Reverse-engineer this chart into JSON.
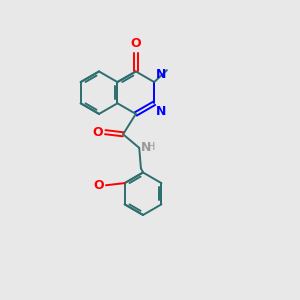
{
  "bg_color": "#e8e8e8",
  "bond_color": "#2d6e6e",
  "n_color": "#0000ff",
  "o_color": "#ff0000",
  "text_color": "#2d6e6e",
  "lw": 1.4,
  "doff": 0.055,
  "r_h": 0.5,
  "xlim": [
    0,
    6
  ],
  "ylim": [
    0,
    7
  ],
  "bcx": 1.8,
  "bcy": 4.85,
  "mb_r": 0.5
}
